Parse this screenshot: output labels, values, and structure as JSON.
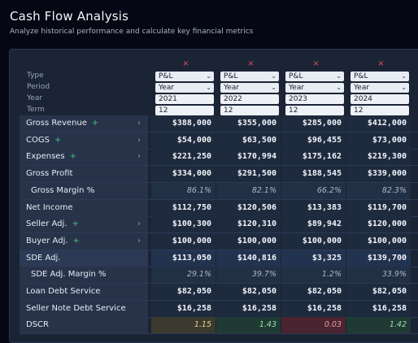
{
  "page": {
    "title": "Cash Flow Analysis",
    "subtitle": "Analyze historical performance and calculate key financial metrics"
  },
  "header_labels": [
    "Type",
    "Period",
    "Year",
    "Term"
  ],
  "remove_icon": "×",
  "columns": [
    {
      "type": "P&L",
      "period": "Year",
      "year": "2021",
      "term": "12"
    },
    {
      "type": "P&L",
      "period": "Year",
      "year": "2022",
      "term": "12"
    },
    {
      "type": "P&L",
      "period": "Year",
      "year": "2023",
      "term": "12"
    },
    {
      "type": "P&L",
      "period": "Year",
      "year": "2024",
      "term": "12"
    }
  ],
  "rows": [
    {
      "label": "Gross Revenue",
      "expandable": true,
      "addable": true,
      "values": [
        "$388,000",
        "$355,000",
        "$285,000",
        "$412,000"
      ]
    },
    {
      "label": "COGS",
      "expandable": true,
      "addable": true,
      "values": [
        "$54,000",
        "$63,500",
        "$96,455",
        "$73,000"
      ]
    },
    {
      "label": "Expenses",
      "expandable": true,
      "addable": true,
      "values": [
        "$221,250",
        "$170,994",
        "$175,162",
        "$219,300"
      ]
    },
    {
      "label": "Gross Profit",
      "values": [
        "$334,000",
        "$291,500",
        "$188,545",
        "$339,000"
      ]
    },
    {
      "label": "Gross Margin %",
      "indent": true,
      "pct": true,
      "values": [
        "86.1%",
        "82.1%",
        "66.2%",
        "82.3%"
      ]
    },
    {
      "label": "Net Income",
      "values": [
        "$112,750",
        "$120,506",
        "$13,383",
        "$119,700"
      ]
    },
    {
      "label": "Seller Adj.",
      "expandable": true,
      "addable": true,
      "values": [
        "$100,300",
        "$120,310",
        "$89,942",
        "$120,000"
      ]
    },
    {
      "label": "Buyer Adj.",
      "expandable": true,
      "addable": true,
      "values": [
        "$100,000",
        "$100,000",
        "$100,000",
        "$100,000"
      ]
    },
    {
      "label": "SDE Adj.",
      "highlight": true,
      "values": [
        "$113,050",
        "$140,816",
        "$3,325",
        "$139,700"
      ]
    },
    {
      "label": "SDE Adj. Margin %",
      "indent": true,
      "pct": true,
      "values": [
        "29.1%",
        "39.7%",
        "1.2%",
        "33.9%"
      ]
    },
    {
      "label": "Loan Debt Service",
      "values": [
        "$82,050",
        "$82,050",
        "$82,050",
        "$82,050"
      ]
    },
    {
      "label": "Seller Note Debt Service",
      "values": [
        "$16,258",
        "$16,258",
        "$16,258",
        "$16,258"
      ]
    },
    {
      "label": "DSCR",
      "dscr": true,
      "values": [
        "1.15",
        "1.43",
        "0.03",
        "1.42"
      ]
    }
  ],
  "icons": {
    "plus": "+",
    "chevron_right": "›",
    "chevron_down": "⌄"
  },
  "colors": {
    "dscr_warn": "#3b3a2e",
    "dscr_ok": "#1f3a33",
    "dscr_bad": "#4a2430",
    "warn_text": "#e9d98a",
    "ok_text": "#9fe0b0",
    "bad_text": "#e8a0ac"
  },
  "dscr_status": [
    "warn",
    "ok",
    "bad",
    "ok"
  ]
}
